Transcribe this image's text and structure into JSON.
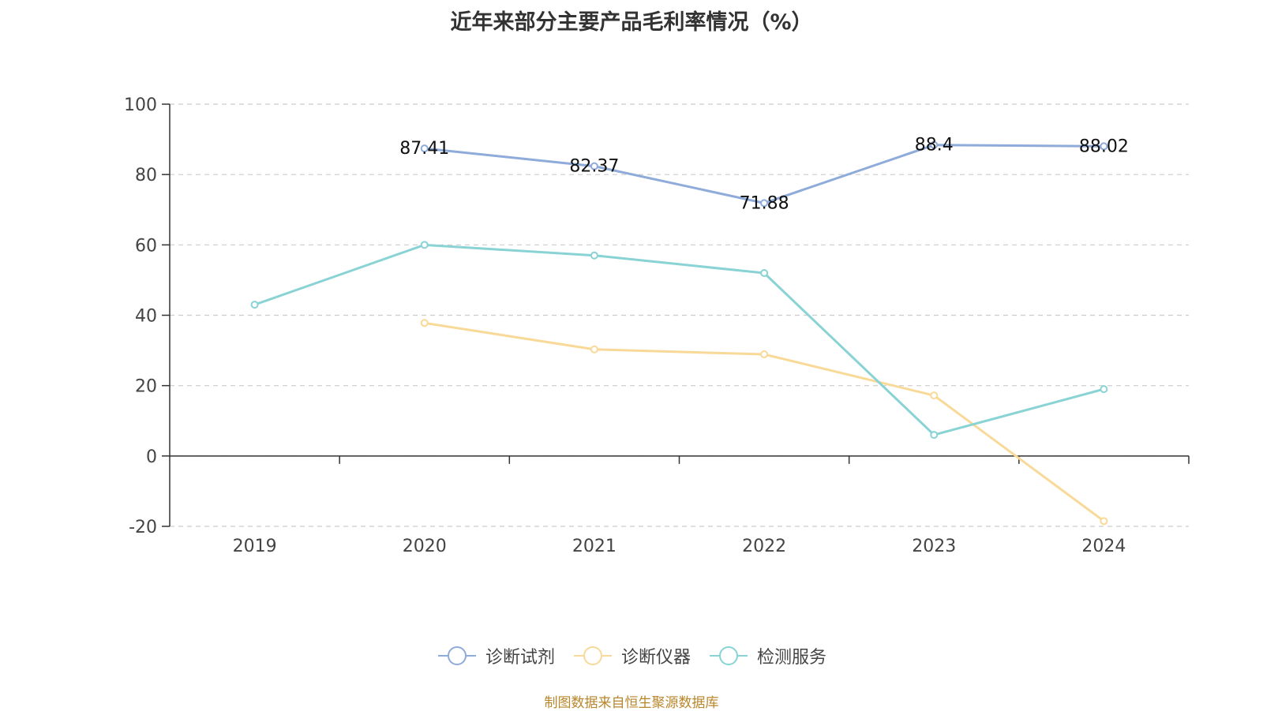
{
  "chart_data": {
    "type": "line",
    "title": "近年来部分主要产品毛利率情况（%）",
    "categories": [
      "2019",
      "2020",
      "2021",
      "2022",
      "2023",
      "2024"
    ],
    "ylim": [
      -20,
      100
    ],
    "yticks": [
      100,
      80,
      60,
      40,
      20,
      0,
      -20
    ],
    "grid": true,
    "legend_position": "bottom",
    "series": [
      {
        "name": "诊断试剂",
        "color": "#8eabda",
        "values": [
          null,
          87.41,
          82.37,
          71.88,
          88.4,
          88.02
        ],
        "labels": [
          "",
          "87.41",
          "82.37",
          "71.88",
          "88.4",
          "88.02"
        ]
      },
      {
        "name": "诊断仪器",
        "color": "#f9d998",
        "values": [
          null,
          37.8,
          30.3,
          28.9,
          17.2,
          -18.5
        ],
        "labels": null
      },
      {
        "name": "检测服务",
        "color": "#89d3d5",
        "values": [
          43.0,
          60.0,
          57.0,
          52.0,
          6.0,
          19.0
        ],
        "labels": null
      }
    ]
  },
  "footnote": {
    "text": "制图数据来自恒生聚源数据库",
    "color": "#b8862b"
  }
}
